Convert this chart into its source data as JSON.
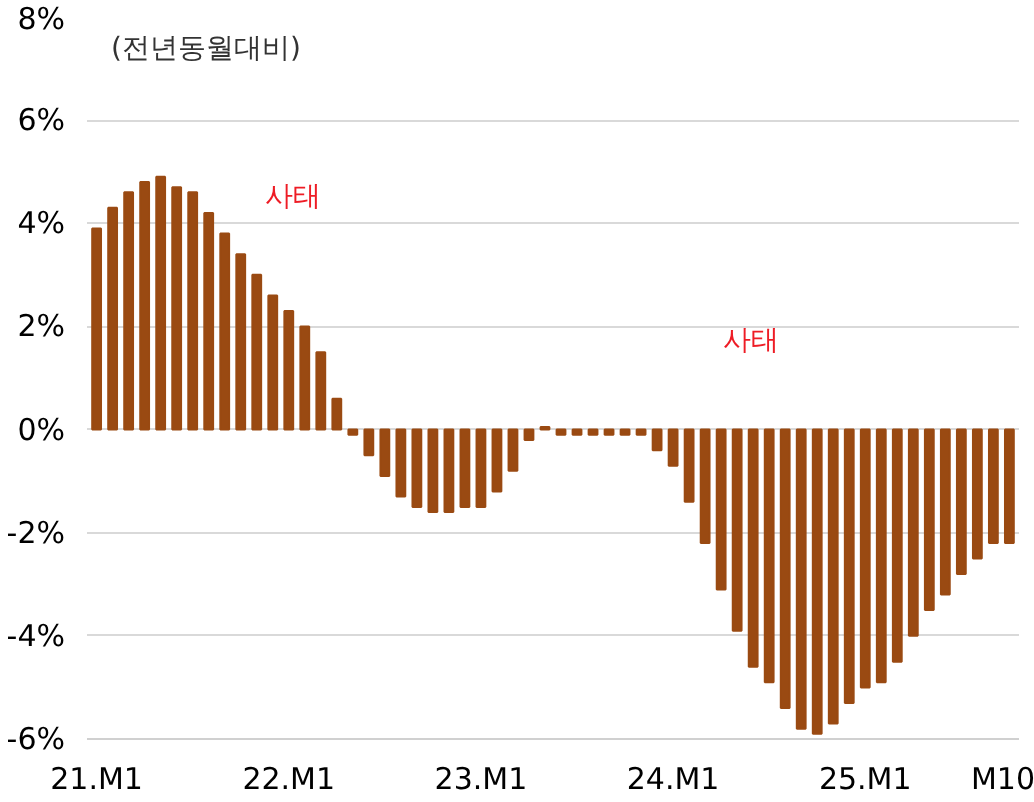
{
  "chart_data": {
    "type": "bar",
    "subtitle": "(전년동월대비)",
    "categories": [
      "21.M1",
      null,
      null,
      null,
      null,
      null,
      null,
      null,
      null,
      null,
      null,
      null,
      "22.M1",
      null,
      null,
      null,
      null,
      null,
      null,
      null,
      null,
      null,
      null,
      null,
      "23.M1",
      null,
      null,
      null,
      null,
      null,
      null,
      null,
      null,
      null,
      null,
      null,
      "24.M1",
      null,
      null,
      null,
      null,
      null,
      null,
      null,
      null,
      null,
      null,
      null,
      "25.M1",
      null,
      null,
      null,
      null,
      null,
      null,
      null,
      null,
      "M10"
    ],
    "series": [
      {
        "color": "#9a4a12",
        "values": [
          3.9,
          4.3,
          4.6,
          4.8,
          4.9,
          4.7,
          4.6,
          4.2,
          3.8,
          3.4,
          3.0,
          2.6,
          2.3,
          2.0,
          1.5,
          0.6,
          -0.1,
          -0.5,
          -0.9,
          -1.3,
          -1.5,
          -1.6,
          -1.6,
          -1.5,
          -1.5,
          -1.2,
          -0.8,
          -0.2,
          0.05,
          -0.1,
          -0.1,
          -0.1,
          -0.1,
          -0.1,
          -0.1,
          -0.4,
          -0.7,
          -1.4,
          -2.2,
          -3.1,
          -3.9,
          -4.6,
          -4.9,
          -5.4,
          -5.8,
          -5.9,
          -5.7,
          -5.3,
          -5.0,
          -4.9,
          -4.5,
          -4.0,
          -3.5,
          -3.2,
          -2.8,
          -2.5,
          -2.2,
          -2.2
        ]
      }
    ],
    "ylim": [
      -6,
      8
    ],
    "yticks": [
      {
        "value": -6,
        "label": "-6%"
      },
      {
        "value": -4,
        "label": "-4%"
      },
      {
        "value": -2,
        "label": "-2%"
      },
      {
        "value": 0,
        "label": "0%"
      },
      {
        "value": 2,
        "label": "2%"
      },
      {
        "value": 4,
        "label": "4%"
      },
      {
        "value": 6,
        "label": "6%"
      },
      {
        "value": 8,
        "label": "8%"
      }
    ],
    "grid": "y",
    "annotations": [
      "사태",
      "사태"
    ]
  }
}
